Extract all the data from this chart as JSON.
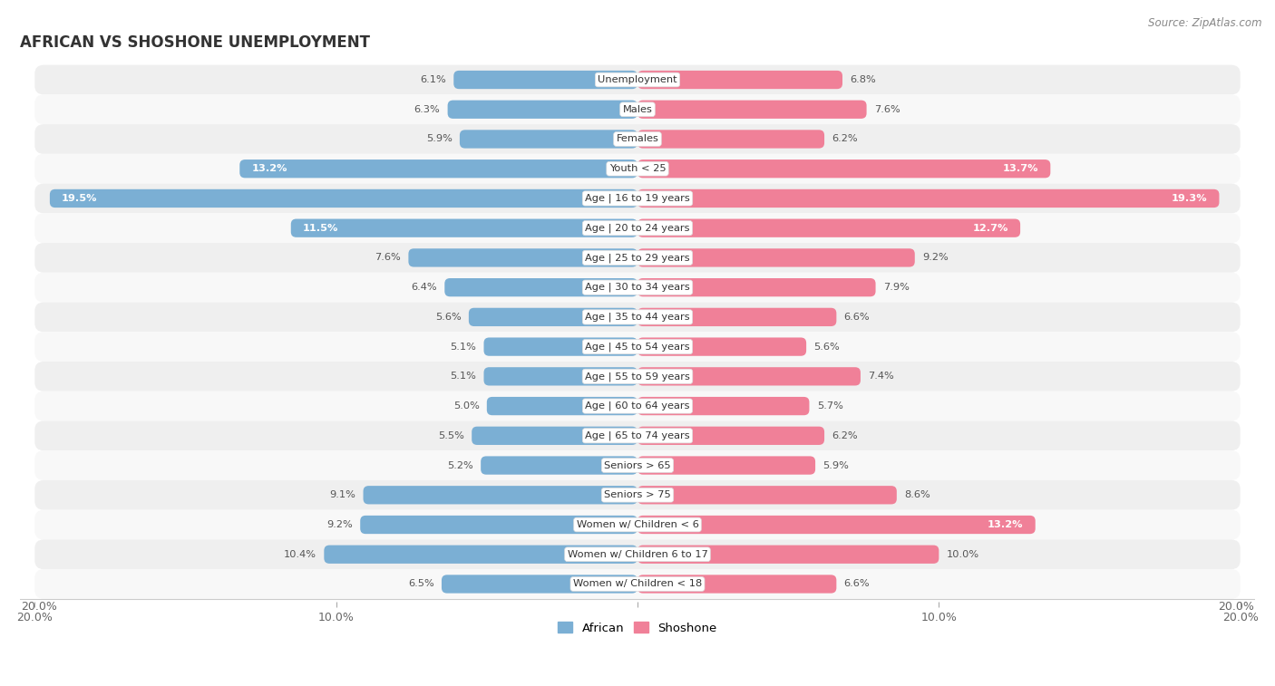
{
  "title": "AFRICAN VS SHOSHONE UNEMPLOYMENT",
  "source": "Source: ZipAtlas.com",
  "categories": [
    "Unemployment",
    "Males",
    "Females",
    "Youth < 25",
    "Age | 16 to 19 years",
    "Age | 20 to 24 years",
    "Age | 25 to 29 years",
    "Age | 30 to 34 years",
    "Age | 35 to 44 years",
    "Age | 45 to 54 years",
    "Age | 55 to 59 years",
    "Age | 60 to 64 years",
    "Age | 65 to 74 years",
    "Seniors > 65",
    "Seniors > 75",
    "Women w/ Children < 6",
    "Women w/ Children 6 to 17",
    "Women w/ Children < 18"
  ],
  "african": [
    6.1,
    6.3,
    5.9,
    13.2,
    19.5,
    11.5,
    7.6,
    6.4,
    5.6,
    5.1,
    5.1,
    5.0,
    5.5,
    5.2,
    9.1,
    9.2,
    10.4,
    6.5
  ],
  "shoshone": [
    6.8,
    7.6,
    6.2,
    13.7,
    19.3,
    12.7,
    9.2,
    7.9,
    6.6,
    5.6,
    7.4,
    5.7,
    6.2,
    5.9,
    8.6,
    13.2,
    10.0,
    6.6
  ],
  "african_color": "#7BAfd4",
  "shoshone_color": "#F08098",
  "african_label": "African",
  "shoshone_label": "Shoshone",
  "max_value": 20.0,
  "row_bg_even": "#f0f0f0",
  "row_bg_odd": "#fafafa",
  "label_inside_threshold": 11.5,
  "label_inside_threshold_shoshone": 12.0
}
